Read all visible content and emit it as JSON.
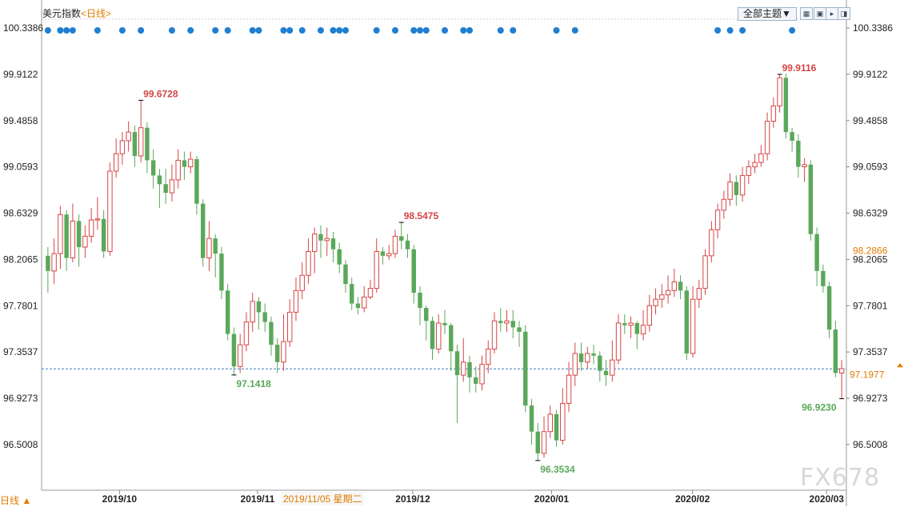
{
  "header": {
    "symbol": "美元指数",
    "period": "<日线>",
    "theme_button": "全部主题▼",
    "window_buttons": [
      "▦",
      "▣",
      "▸",
      "◨"
    ]
  },
  "footer": {
    "period_label": "日线 ▲",
    "hover_date": "2019/11/05 星期二",
    "watermark": "FX678"
  },
  "chart_data": {
    "type": "candlestick",
    "title": "美元指数 <日线>",
    "y_ticks": [
      100.3386,
      99.9122,
      99.4858,
      99.0593,
      98.6329,
      98.2065,
      97.7801,
      97.3537,
      96.9273,
      96.5008
    ],
    "x_ticks": [
      "2019/10",
      "2019/11",
      "2019/12",
      "2020/01",
      "2020/02",
      "2020/03"
    ],
    "ylim": [
      96.08,
      100.42
    ],
    "current_price": 97.1977,
    "prev_close": 98.2866,
    "annotations": [
      {
        "label": "99.6728",
        "value": 99.6728,
        "type": "high"
      },
      {
        "label": "97.1418",
        "value": 97.1418,
        "type": "low"
      },
      {
        "label": "98.5475",
        "value": 98.5475,
        "type": "high"
      },
      {
        "label": "96.3534",
        "value": 96.3534,
        "type": "low"
      },
      {
        "label": "99.9116",
        "value": 99.9116,
        "type": "high"
      },
      {
        "label": "96.9230",
        "value": 96.923,
        "type": "low"
      }
    ],
    "colors": {
      "up": "#d64545",
      "down": "#5aa85a",
      "marker": "#1f7fd0",
      "current": "#e07b00"
    },
    "candles": [
      [
        98.24,
        98.1,
        98.32,
        97.9
      ],
      [
        98.1,
        98.26,
        98.4,
        97.98
      ],
      [
        98.26,
        98.62,
        98.7,
        98.12
      ],
      [
        98.62,
        98.22,
        98.66,
        98.1
      ],
      [
        98.22,
        98.56,
        98.72,
        98.18
      ],
      [
        98.56,
        98.32,
        98.62,
        98.14
      ],
      [
        98.32,
        98.42,
        98.52,
        98.22
      ],
      [
        98.42,
        98.57,
        98.68,
        98.36
      ],
      [
        98.57,
        98.58,
        98.78,
        98.48
      ],
      [
        98.58,
        98.28,
        98.66,
        98.22
      ],
      [
        98.28,
        99.02,
        99.1,
        98.24
      ],
      [
        99.02,
        99.18,
        99.32,
        98.96
      ],
      [
        99.18,
        99.3,
        99.38,
        99.08
      ],
      [
        99.3,
        99.38,
        99.48,
        99.2
      ],
      [
        99.38,
        99.16,
        99.44,
        99.06
      ],
      [
        99.16,
        99.42,
        99.67,
        99.1
      ],
      [
        99.42,
        99.12,
        99.47,
        99.0
      ],
      [
        99.12,
        98.98,
        99.22,
        98.86
      ],
      [
        98.98,
        98.9,
        99.04,
        98.68
      ],
      [
        98.9,
        98.82,
        99.04,
        98.72
      ],
      [
        98.82,
        98.94,
        99.08,
        98.74
      ],
      [
        98.94,
        99.12,
        99.22,
        98.86
      ],
      [
        99.12,
        99.06,
        99.2,
        98.94
      ],
      [
        99.06,
        99.13,
        99.2,
        99.0
      ],
      [
        99.13,
        98.72,
        99.16,
        98.62
      ],
      [
        98.72,
        98.22,
        98.76,
        98.14
      ],
      [
        98.22,
        98.4,
        98.56,
        98.1
      ],
      [
        98.4,
        98.26,
        98.44,
        98.04
      ],
      [
        98.26,
        97.92,
        98.32,
        97.84
      ],
      [
        97.92,
        97.52,
        97.98,
        97.46
      ],
      [
        97.52,
        97.22,
        97.58,
        97.14
      ],
      [
        97.22,
        97.42,
        97.52,
        97.16
      ],
      [
        97.42,
        97.63,
        97.72,
        97.36
      ],
      [
        97.63,
        97.82,
        97.9,
        97.54
      ],
      [
        97.82,
        97.72,
        97.86,
        97.56
      ],
      [
        97.72,
        97.63,
        97.8,
        97.54
      ],
      [
        97.63,
        97.42,
        97.68,
        97.32
      ],
      [
        97.42,
        97.26,
        97.48,
        97.16
      ],
      [
        97.26,
        97.45,
        97.7,
        97.18
      ],
      [
        97.45,
        97.72,
        97.84,
        97.4
      ],
      [
        97.72,
        97.92,
        98.04,
        97.64
      ],
      [
        97.92,
        98.06,
        98.18,
        97.84
      ],
      [
        98.06,
        98.28,
        98.4,
        97.98
      ],
      [
        98.28,
        98.44,
        98.5,
        98.08
      ],
      [
        98.44,
        98.38,
        98.52,
        98.22
      ],
      [
        98.38,
        98.4,
        98.5,
        98.24
      ],
      [
        98.4,
        98.3,
        98.46,
        98.18
      ],
      [
        98.3,
        98.16,
        98.36,
        98.08
      ],
      [
        98.16,
        97.98,
        98.2,
        97.9
      ],
      [
        97.98,
        97.8,
        98.04,
        97.74
      ],
      [
        97.8,
        97.76,
        97.86,
        97.7
      ],
      [
        97.76,
        97.86,
        97.96,
        97.72
      ],
      [
        97.86,
        97.94,
        98.02,
        97.84
      ],
      [
        97.94,
        98.28,
        98.4,
        97.9
      ],
      [
        98.28,
        98.24,
        98.32,
        98.16
      ],
      [
        98.24,
        98.26,
        98.34,
        98.2
      ],
      [
        98.26,
        98.42,
        98.48,
        98.22
      ],
      [
        98.42,
        98.38,
        98.55,
        98.3
      ],
      [
        98.38,
        98.3,
        98.44,
        98.22
      ],
      [
        98.3,
        97.9,
        98.34,
        97.8
      ],
      [
        97.9,
        97.76,
        97.96,
        97.6
      ],
      [
        97.76,
        97.64,
        97.78,
        97.46
      ],
      [
        97.64,
        97.38,
        97.68,
        97.28
      ],
      [
        97.38,
        97.62,
        97.7,
        97.34
      ],
      [
        97.62,
        97.6,
        97.74,
        97.52
      ],
      [
        97.6,
        97.36,
        97.62,
        97.18
      ],
      [
        97.36,
        97.14,
        97.42,
        96.7
      ],
      [
        97.14,
        97.26,
        97.48,
        97.08
      ],
      [
        97.26,
        97.12,
        97.32,
        96.98
      ],
      [
        97.12,
        97.06,
        97.22,
        96.98
      ],
      [
        97.06,
        97.24,
        97.32,
        97.0
      ],
      [
        97.24,
        97.38,
        97.46,
        97.16
      ],
      [
        97.38,
        97.64,
        97.72,
        97.34
      ],
      [
        97.64,
        97.62,
        97.76,
        97.54
      ],
      [
        97.62,
        97.64,
        97.74,
        97.54
      ],
      [
        97.64,
        97.58,
        97.74,
        97.48
      ],
      [
        97.58,
        97.54,
        97.64,
        97.4
      ],
      [
        97.54,
        96.86,
        97.6,
        96.8
      ],
      [
        96.86,
        96.62,
        96.92,
        96.5
      ],
      [
        96.62,
        96.42,
        96.7,
        96.35
      ],
      [
        96.42,
        96.62,
        96.76,
        96.38
      ],
      [
        96.62,
        96.78,
        96.86,
        96.56
      ],
      [
        96.78,
        96.54,
        96.82,
        96.48
      ],
      [
        96.54,
        96.88,
        97.02,
        96.5
      ],
      [
        96.88,
        97.14,
        97.26,
        96.8
      ],
      [
        97.14,
        97.34,
        97.44,
        97.04
      ],
      [
        97.34,
        97.26,
        97.44,
        97.18
      ],
      [
        97.26,
        97.34,
        97.4,
        97.2
      ],
      [
        97.34,
        97.32,
        97.42,
        97.24
      ],
      [
        97.32,
        97.18,
        97.36,
        97.08
      ],
      [
        97.18,
        97.14,
        97.28,
        97.04
      ],
      [
        97.14,
        97.28,
        97.46,
        97.08
      ],
      [
        97.28,
        97.62,
        97.7,
        97.24
      ],
      [
        97.62,
        97.6,
        97.7,
        97.52
      ],
      [
        97.6,
        97.62,
        97.68,
        97.48
      ],
      [
        97.62,
        97.52,
        97.64,
        97.38
      ],
      [
        97.52,
        97.6,
        97.74,
        97.46
      ],
      [
        97.6,
        97.78,
        97.88,
        97.54
      ],
      [
        97.78,
        97.84,
        97.94,
        97.7
      ],
      [
        97.84,
        97.88,
        97.98,
        97.76
      ],
      [
        97.88,
        97.92,
        98.06,
        97.8
      ],
      [
        97.92,
        98.0,
        98.12,
        97.86
      ],
      [
        98.0,
        97.92,
        98.06,
        97.84
      ],
      [
        97.92,
        97.34,
        97.96,
        97.28
      ],
      [
        97.34,
        97.84,
        97.96,
        97.3
      ],
      [
        97.84,
        97.94,
        98.02,
        97.76
      ],
      [
        97.94,
        98.24,
        98.3,
        97.88
      ],
      [
        98.24,
        98.48,
        98.56,
        98.18
      ],
      [
        98.48,
        98.66,
        98.72,
        98.4
      ],
      [
        98.66,
        98.76,
        98.84,
        98.58
      ],
      [
        98.76,
        98.92,
        99.0,
        98.7
      ],
      [
        98.92,
        98.8,
        98.98,
        98.7
      ],
      [
        98.8,
        98.98,
        99.06,
        98.74
      ],
      [
        98.98,
        99.06,
        99.12,
        98.9
      ],
      [
        99.06,
        99.1,
        99.18,
        99.0
      ],
      [
        99.1,
        99.18,
        99.26,
        99.06
      ],
      [
        99.18,
        99.48,
        99.56,
        99.12
      ],
      [
        99.48,
        99.62,
        99.7,
        99.42
      ],
      [
        99.62,
        99.88,
        99.91,
        99.56
      ],
      [
        99.88,
        99.38,
        99.92,
        99.32
      ],
      [
        99.38,
        99.3,
        99.42,
        99.2
      ],
      [
        99.3,
        99.06,
        99.36,
        98.96
      ],
      [
        99.06,
        99.08,
        99.14,
        98.92
      ],
      [
        99.08,
        98.44,
        99.12,
        98.38
      ],
      [
        98.44,
        98.1,
        98.5,
        97.96
      ],
      [
        98.1,
        97.96,
        98.16,
        97.9
      ],
      [
        97.96,
        97.56,
        98.0,
        97.48
      ],
      [
        97.56,
        97.16,
        97.64,
        97.12
      ],
      [
        97.16,
        97.2,
        97.28,
        96.92
      ]
    ],
    "markers_at": [
      0,
      2,
      3,
      4,
      8,
      12,
      15,
      20,
      23,
      27,
      29,
      33,
      34,
      38,
      39,
      41,
      44,
      46,
      47,
      48,
      53,
      56,
      59,
      60,
      61,
      64,
      67,
      68,
      73,
      75,
      82,
      85,
      108,
      110,
      112,
      120
    ]
  }
}
